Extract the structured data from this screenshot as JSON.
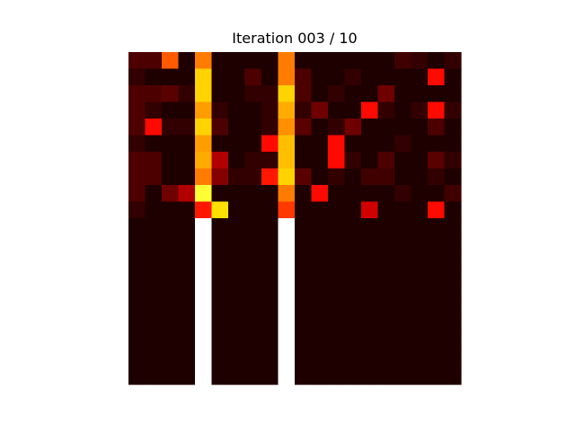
{
  "chart_data": {
    "type": "heatmap",
    "title": "Iteration 003 / 10",
    "xlabel": "",
    "ylabel": "",
    "colormap": "hot",
    "axes_visible": false,
    "vmin": 0,
    "vmax": 1,
    "n_rows": 20,
    "n_cols": 20,
    "masked_cells_note": "cells with value null are masked (rendered white)",
    "values": [
      [
        0.1,
        0.1,
        0.5,
        0.03,
        0.55,
        0.03,
        0.03,
        0.03,
        0.03,
        0.55,
        0.03,
        0.03,
        0.03,
        0.03,
        0.03,
        0.03,
        0.08,
        0.06,
        0.03,
        0.06
      ],
      [
        0.06,
        0.03,
        0.03,
        0.03,
        0.68,
        0.03,
        0.03,
        0.1,
        0.03,
        0.55,
        0.1,
        0.03,
        0.03,
        0.06,
        0.03,
        0.03,
        0.03,
        0.03,
        0.38,
        0.03
      ],
      [
        0.1,
        0.1,
        0.12,
        0.06,
        0.68,
        0.03,
        0.03,
        0.06,
        0.06,
        0.68,
        0.1,
        0.03,
        0.06,
        0.03,
        0.03,
        0.15,
        0.03,
        0.03,
        0.03,
        0.03
      ],
      [
        0.1,
        0.06,
        0.03,
        0.03,
        0.6,
        0.06,
        0.03,
        0.03,
        0.06,
        0.62,
        0.06,
        0.15,
        0.03,
        0.03,
        0.38,
        0.06,
        0.03,
        0.06,
        0.38,
        0.06
      ],
      [
        0.1,
        0.38,
        0.06,
        0.06,
        0.68,
        0.1,
        0.03,
        0.03,
        0.06,
        0.58,
        0.12,
        0.03,
        0.06,
        0.15,
        0.03,
        0.03,
        0.03,
        0.03,
        0.1,
        0.03
      ],
      [
        0.06,
        0.03,
        0.03,
        0.03,
        0.6,
        0.03,
        0.03,
        0.03,
        0.38,
        0.65,
        0.03,
        0.03,
        0.38,
        0.03,
        0.03,
        0.03,
        0.06,
        0.03,
        0.03,
        0.03
      ],
      [
        0.1,
        0.1,
        0.03,
        0.03,
        0.62,
        0.25,
        0.03,
        0.06,
        0.06,
        0.65,
        0.03,
        0.03,
        0.38,
        0.06,
        0.03,
        0.1,
        0.03,
        0.03,
        0.12,
        0.06
      ],
      [
        0.1,
        0.1,
        0.03,
        0.03,
        0.55,
        0.18,
        0.06,
        0.06,
        0.4,
        0.68,
        0.12,
        0.03,
        0.06,
        0.03,
        0.08,
        0.08,
        0.03,
        0.03,
        0.06,
        0.03
      ],
      [
        0.1,
        0.03,
        0.15,
        0.25,
        0.8,
        0.03,
        0.03,
        0.03,
        0.03,
        0.55,
        0.03,
        0.38,
        0.03,
        0.03,
        0.03,
        0.03,
        0.06,
        0.03,
        0.03,
        0.08
      ],
      [
        0.06,
        0.03,
        0.03,
        0.03,
        0.4,
        0.7,
        0.03,
        0.03,
        0.03,
        0.45,
        0.03,
        0.03,
        0.03,
        0.03,
        0.3,
        0.03,
        0.03,
        0.03,
        0.38,
        0.03
      ],
      [
        0.03,
        0.03,
        0.03,
        0.03,
        null,
        0.03,
        0.03,
        0.03,
        0.03,
        null,
        0.03,
        0.03,
        0.03,
        0.03,
        0.03,
        0.03,
        0.03,
        0.03,
        0.03,
        0.03
      ],
      [
        0.03,
        0.03,
        0.03,
        0.03,
        null,
        0.03,
        0.03,
        0.03,
        0.03,
        null,
        0.03,
        0.03,
        0.03,
        0.03,
        0.03,
        0.03,
        0.03,
        0.03,
        0.03,
        0.03
      ],
      [
        0.03,
        0.03,
        0.03,
        0.03,
        null,
        0.03,
        0.03,
        0.03,
        0.03,
        null,
        0.03,
        0.03,
        0.03,
        0.03,
        0.03,
        0.03,
        0.03,
        0.03,
        0.03,
        0.03
      ],
      [
        0.03,
        0.03,
        0.03,
        0.03,
        null,
        0.03,
        0.03,
        0.03,
        0.03,
        null,
        0.03,
        0.03,
        0.03,
        0.03,
        0.03,
        0.03,
        0.03,
        0.03,
        0.03,
        0.03
      ],
      [
        0.03,
        0.03,
        0.03,
        0.03,
        null,
        0.03,
        0.03,
        0.03,
        0.03,
        null,
        0.03,
        0.03,
        0.03,
        0.03,
        0.03,
        0.03,
        0.03,
        0.03,
        0.03,
        0.03
      ],
      [
        0.03,
        0.03,
        0.03,
        0.03,
        null,
        0.03,
        0.03,
        0.03,
        0.03,
        null,
        0.03,
        0.03,
        0.03,
        0.03,
        0.03,
        0.03,
        0.03,
        0.03,
        0.03,
        0.03
      ],
      [
        0.03,
        0.03,
        0.03,
        0.03,
        null,
        0.03,
        0.03,
        0.03,
        0.03,
        null,
        0.03,
        0.03,
        0.03,
        0.03,
        0.03,
        0.03,
        0.03,
        0.03,
        0.03,
        0.03
      ],
      [
        0.03,
        0.03,
        0.03,
        0.03,
        null,
        0.03,
        0.03,
        0.03,
        0.03,
        null,
        0.03,
        0.03,
        0.03,
        0.03,
        0.03,
        0.03,
        0.03,
        0.03,
        0.03,
        0.03
      ],
      [
        0.03,
        0.03,
        0.03,
        0.03,
        null,
        0.03,
        0.03,
        0.03,
        0.03,
        null,
        0.03,
        0.03,
        0.03,
        0.03,
        0.03,
        0.03,
        0.03,
        0.03,
        0.03,
        0.03
      ],
      [
        0.03,
        0.03,
        0.03,
        0.03,
        null,
        0.03,
        0.03,
        0.03,
        0.03,
        null,
        0.03,
        0.03,
        0.03,
        0.03,
        0.03,
        0.03,
        0.03,
        0.03,
        0.03,
        0.03
      ]
    ]
  }
}
